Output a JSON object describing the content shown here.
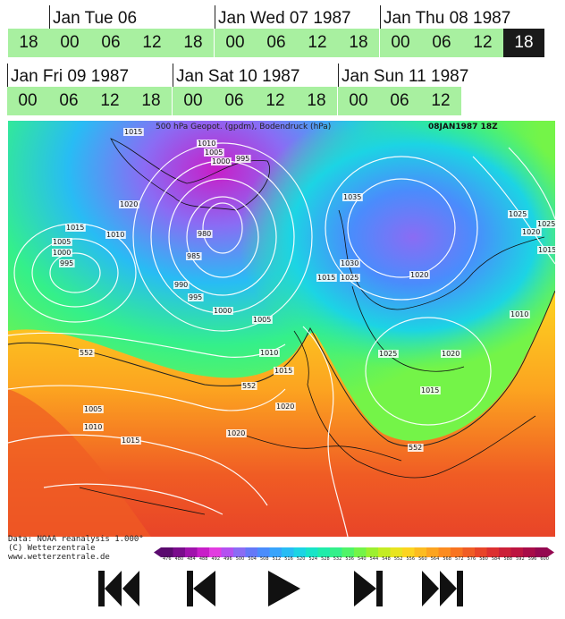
{
  "days": [
    {
      "label": "Jan Tue 06",
      "hours": [
        "18",
        "00",
        "06",
        "12",
        "18"
      ]
    },
    {
      "label": "Jan Wed 07 1987",
      "hours": [
        "00",
        "06",
        "12",
        "18"
      ]
    },
    {
      "label": "Jan Thu 08 1987",
      "hours": [
        "00",
        "06",
        "12",
        "18"
      ]
    },
    {
      "label": "Jan Fri 09 1987",
      "hours": [
        "00",
        "06",
        "12",
        "18"
      ]
    },
    {
      "label": "Jan Sat 10 1987",
      "hours": [
        "00",
        "06",
        "12",
        "18"
      ]
    },
    {
      "label": "Jan Sun 11 1987",
      "hours": [
        "00",
        "06",
        "12"
      ]
    }
  ],
  "selected": "Jan Thu 08 1987 18",
  "map": {
    "title": "500 hPa Geopot. (gpdm), Bodendruck (hPa)",
    "timestamp": "08JAN1987 18Z",
    "isobar_labels": [
      "1015",
      "1010",
      "1005",
      "1000",
      "995",
      "1020",
      "1015",
      "1010",
      "1005",
      "1000",
      "995",
      "985",
      "980",
      "990",
      "995",
      "1000",
      "1005",
      "1010",
      "1015",
      "1020",
      "1035",
      "1030",
      "1025",
      "1015",
      "1020",
      "1025",
      "1025",
      "1020",
      "1015",
      "1010",
      "1025",
      "1020",
      "1015",
      "1005",
      "1010",
      "1015",
      "1020",
      "552",
      "552",
      "552"
    ]
  },
  "credits": [
    "Data: NOAA reanalysis 1.000°",
    "(C) Wetterzentrale",
    "www.wetterzentrale.de"
  ],
  "colorbar": {
    "ticks": [
      "476",
      "480",
      "484",
      "488",
      "492",
      "496",
      "500",
      "504",
      "508",
      "512",
      "516",
      "520",
      "524",
      "528",
      "532",
      "536",
      "540",
      "544",
      "548",
      "552",
      "556",
      "560",
      "564",
      "568",
      "572",
      "576",
      "580",
      "584",
      "588",
      "592",
      "596",
      "600"
    ],
    "colors": [
      "#5a0a6e",
      "#7a0c8c",
      "#a012ac",
      "#c81ec8",
      "#e23ce0",
      "#b450f0",
      "#8a6cf4",
      "#6478f8",
      "#4a8cfc",
      "#38a4fc",
      "#28bcf4",
      "#1cd4e4",
      "#18e4c8",
      "#20ecaa",
      "#34f08a",
      "#50f468",
      "#74f448",
      "#9cf030",
      "#c4ec24",
      "#e8e420",
      "#fcd420",
      "#fcbc20",
      "#fca420",
      "#fc8c20",
      "#f87420",
      "#f05c24",
      "#e84428",
      "#dc3030",
      "#cc2038",
      "#bc1440",
      "#a80c48",
      "#940850"
    ]
  },
  "controls": [
    "first-frame",
    "previous-frame",
    "play",
    "next-frame",
    "last-frame"
  ]
}
